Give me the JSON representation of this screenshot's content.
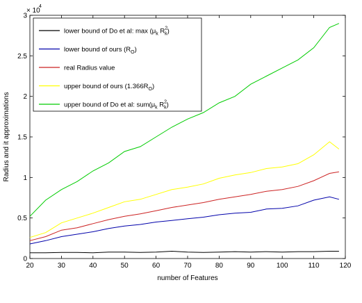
{
  "chart_data": {
    "type": "line",
    "xlabel": "number of Features",
    "ylabel": "Radius and it approximations",
    "xlim": [
      20,
      120
    ],
    "ylim": [
      0,
      30000
    ],
    "x_ticks": [
      20,
      30,
      40,
      50,
      60,
      70,
      80,
      90,
      100,
      110,
      120
    ],
    "y_ticks": [
      0,
      5000,
      10000,
      15000,
      20000,
      25000,
      30000
    ],
    "y_tick_labels": [
      "0",
      "0.5",
      "1",
      "1.5",
      "2",
      "2.5",
      "3"
    ],
    "y_exponent": "× 10",
    "y_exponent_power": "4",
    "grid": false,
    "legend_position": "top-left",
    "x": [
      20,
      25,
      30,
      35,
      40,
      45,
      50,
      55,
      60,
      65,
      70,
      75,
      80,
      85,
      90,
      95,
      100,
      105,
      110,
      115,
      118
    ],
    "series": [
      {
        "name": "lower bound of Do et al: max (μ_k R_k^2)",
        "color": "#000000",
        "values": [
          700,
          700,
          750,
          750,
          700,
          800,
          800,
          750,
          800,
          900,
          800,
          750,
          800,
          850,
          800,
          850,
          800,
          850,
          850,
          900,
          900
        ]
      },
      {
        "name": "lower bound of ours (R_O)",
        "color": "#0000aa",
        "values": [
          1800,
          2200,
          2700,
          3000,
          3300,
          3700,
          4000,
          4200,
          4500,
          4700,
          4900,
          5100,
          5400,
          5600,
          5700,
          6100,
          6200,
          6500,
          7200,
          7600,
          7300
        ]
      },
      {
        "name": "real Radius value",
        "color": "#cc2222",
        "values": [
          2200,
          2700,
          3500,
          3800,
          4300,
          4800,
          5200,
          5500,
          5900,
          6300,
          6600,
          6900,
          7300,
          7600,
          7900,
          8300,
          8500,
          8900,
          9600,
          10500,
          10700
        ]
      },
      {
        "name": "upper bound of ours (1.366R_O)",
        "color": "#ffff00",
        "values": [
          2600,
          3200,
          4400,
          5000,
          5600,
          6300,
          7000,
          7300,
          7900,
          8500,
          8800,
          9200,
          9900,
          10300,
          10600,
          11100,
          11300,
          11700,
          12800,
          14400,
          13500
        ]
      },
      {
        "name": "upper bound of Do et al: sum(μ_k R_k^2)",
        "color": "#00cc00",
        "values": [
          5200,
          7200,
          8500,
          9500,
          10800,
          11800,
          13200,
          13800,
          15000,
          16200,
          17200,
          18000,
          19200,
          20000,
          21500,
          22500,
          23500,
          24500,
          26000,
          28500,
          29000
        ]
      }
    ]
  },
  "legend": {
    "items": [
      {
        "text": "lower bound of Do et al: max (μ",
        "sub1": "k",
        "mid": " R",
        "sup": "2",
        "sub2": "k",
        "tail": ")"
      },
      {
        "text": "lower bound of ours (R",
        "sub1": "O",
        "tail": ")"
      },
      {
        "text": "real Radius value"
      },
      {
        "text": "upper bound of ours (1.366R",
        "sub1": "O",
        "tail": ")"
      },
      {
        "text": "upper bound of Do et al: sum(μ",
        "sub1": "k",
        "mid": " R",
        "sup": "2",
        "sub2": "k",
        "tail": ")"
      }
    ]
  }
}
